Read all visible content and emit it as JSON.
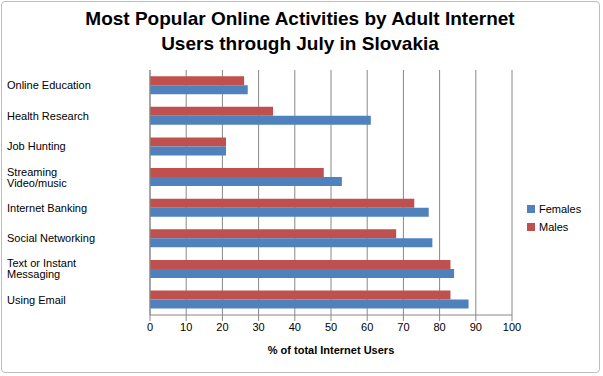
{
  "chart_data": {
    "type": "bar",
    "title": "Most Popular Online Activities by Adult Internet Users through July in Slovakia",
    "orientation": "horizontal",
    "categories": [
      "Online Education",
      "Health Research",
      "Job Hunting",
      "Streaming Video/music",
      "Internet Banking",
      "Social Networking",
      "Text or Instant Messaging",
      "Using Email"
    ],
    "series": [
      {
        "name": "Males",
        "color": "#c0504d",
        "values": [
          26,
          34,
          21,
          48,
          73,
          68,
          83,
          83
        ]
      },
      {
        "name": "Females",
        "color": "#4f81bd",
        "values": [
          27,
          61,
          21,
          53,
          77,
          78,
          84,
          88
        ]
      }
    ],
    "x_label": "% of total Internet Users",
    "xlim": [
      0,
      100
    ],
    "xticks": [
      0,
      10,
      20,
      30,
      40,
      50,
      60,
      70,
      80,
      90,
      100
    ],
    "grid": true,
    "legend": "right"
  }
}
